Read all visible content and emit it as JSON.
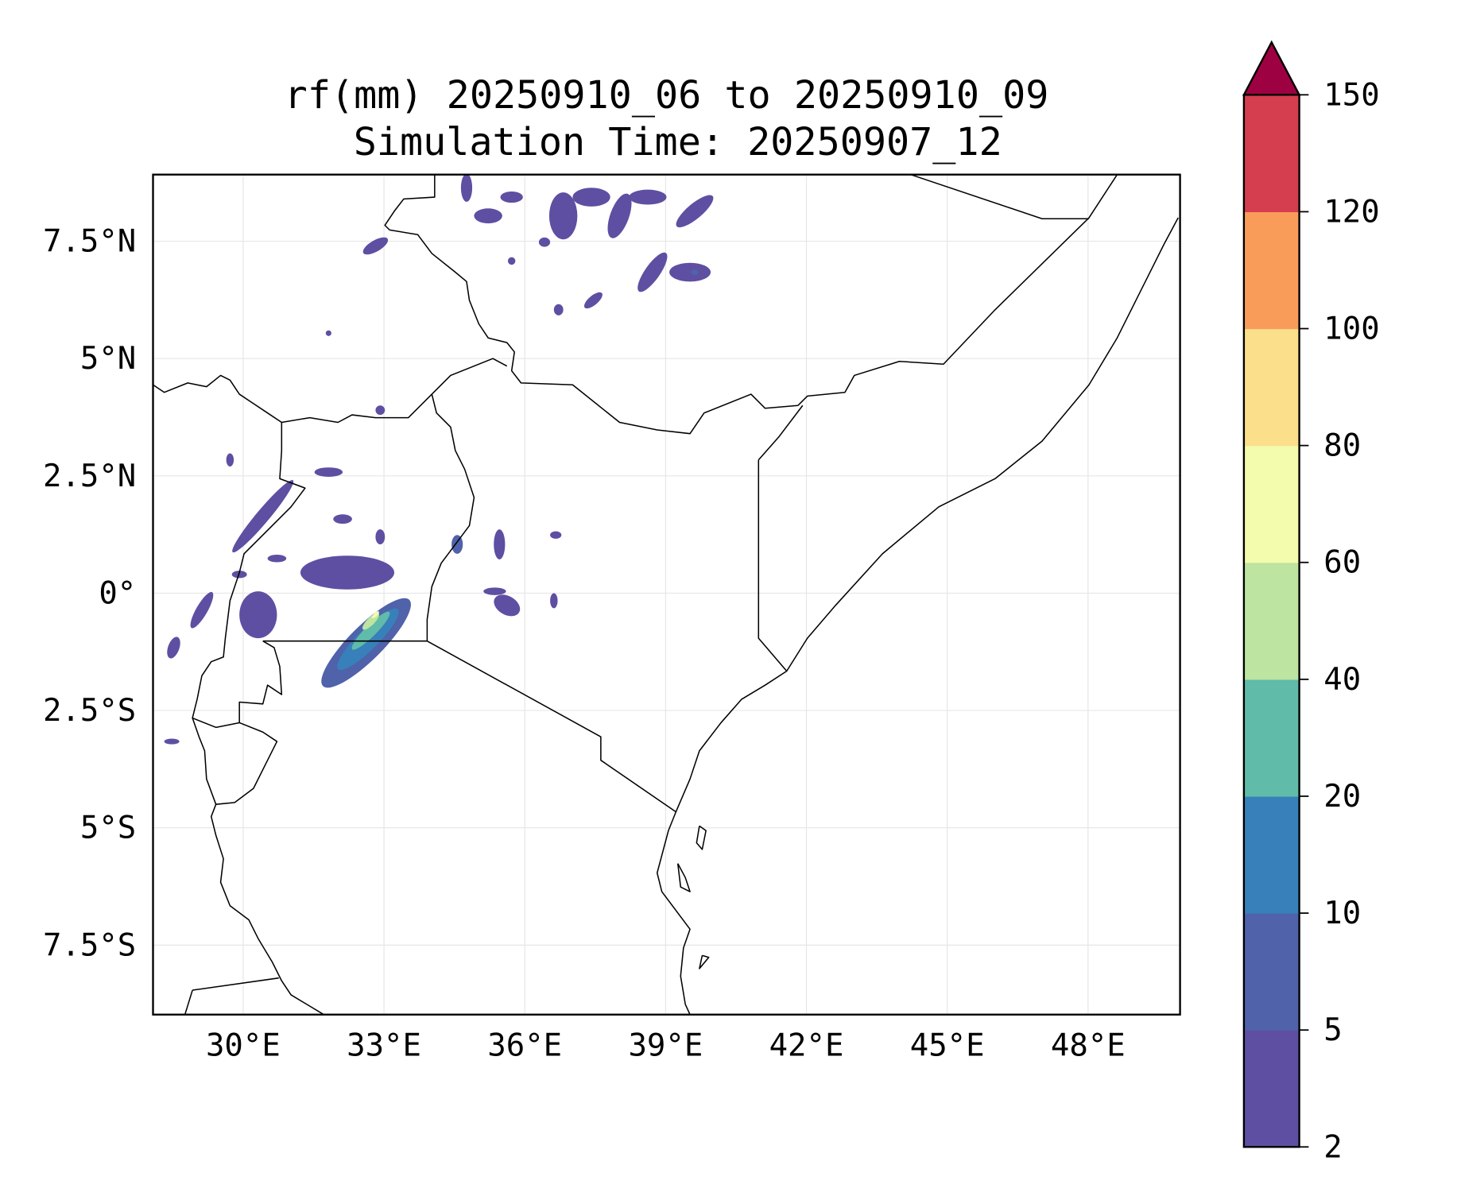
{
  "chart_data": {
    "type": "heatmap",
    "subtype": "filled-contour-map",
    "title": [
      "rf(mm) 20250910_06 to 20250910_09",
      "Simulation Time: 20250907_12"
    ],
    "xlabel": "",
    "ylabel": "",
    "xlim": [
      28.08,
      49.96
    ],
    "ylim": [
      -8.98,
      8.92
    ],
    "grid": true,
    "x_ticks": [
      {
        "value": 30,
        "label": "30°E"
      },
      {
        "value": 33,
        "label": "33°E"
      },
      {
        "value": 36,
        "label": "36°E"
      },
      {
        "value": 39,
        "label": "39°E"
      },
      {
        "value": 42,
        "label": "42°E"
      },
      {
        "value": 45,
        "label": "45°E"
      },
      {
        "value": 48,
        "label": "48°E"
      }
    ],
    "y_ticks": [
      {
        "value": 7.5,
        "label": "7.5°N"
      },
      {
        "value": 5,
        "label": "5°N"
      },
      {
        "value": 2.5,
        "label": "2.5°N"
      },
      {
        "value": 0,
        "label": "0°"
      },
      {
        "value": -2.5,
        "label": "2.5°S"
      },
      {
        "value": -5,
        "label": "5°S"
      },
      {
        "value": -7.5,
        "label": "7.5°S"
      }
    ],
    "colorbar": {
      "placement": "right",
      "levels": [
        2,
        5,
        10,
        20,
        40,
        60,
        80,
        100,
        120,
        150
      ],
      "labels": [
        "2",
        "5",
        "10",
        "20",
        "40",
        "60",
        "80",
        "100",
        "120",
        "150"
      ],
      "colors": [
        "#5e4fa2",
        "#4f62aa",
        "#3880b9",
        "#61bba9",
        "#bde4a0",
        "#f3fbad",
        "#fbdf8a",
        "#f99c5a",
        "#d53e4f"
      ],
      "extend_max_color": "#9e0142"
    },
    "rain_cells": [
      {
        "lon": 32.22,
        "lat": 0.44,
        "rlon": 1.0,
        "rlat": 0.36,
        "rot": 0,
        "level": 0
      },
      {
        "lon": 32.62,
        "lat": -1.06,
        "rlon": 1.3,
        "rlat": 0.36,
        "rot": -45,
        "level": 1
      },
      {
        "lon": 32.66,
        "lat": -0.98,
        "rlon": 0.9,
        "rlat": 0.22,
        "rot": -45,
        "level": 2
      },
      {
        "lon": 32.72,
        "lat": -0.8,
        "rlon": 0.56,
        "rlat": 0.12,
        "rot": -45,
        "level": 3
      },
      {
        "lon": 32.72,
        "lat": -0.6,
        "rlon": 0.24,
        "rlat": 0.08,
        "rot": -45,
        "level": 4
      },
      {
        "lon": 32.82,
        "lat": -0.46,
        "rlon": 0.1,
        "rlat": 0.04,
        "rot": -45,
        "level": 5
      },
      {
        "lon": 30.32,
        "lat": -0.46,
        "rlon": 0.4,
        "rlat": 0.5,
        "rot": 0,
        "level": 0
      },
      {
        "lon": 30.42,
        "lat": 1.64,
        "rlon": 1.0,
        "rlat": 0.14,
        "rot": -50,
        "level": 0
      },
      {
        "lon": 29.12,
        "lat": -0.36,
        "rlon": 0.44,
        "rlat": 0.12,
        "rot": -60,
        "level": 0
      },
      {
        "lon": 31.82,
        "lat": 2.58,
        "rlon": 0.3,
        "rlat": 0.1,
        "rot": 0,
        "level": 0
      },
      {
        "lon": 32.12,
        "lat": 1.58,
        "rlon": 0.2,
        "rlat": 0.1,
        "rot": 0,
        "level": 0
      },
      {
        "lon": 32.92,
        "lat": 1.2,
        "rlon": 0.1,
        "rlat": 0.16,
        "rot": 0,
        "level": 0
      },
      {
        "lon": 34.56,
        "lat": 1.04,
        "rlon": 0.12,
        "rlat": 0.2,
        "rot": 0,
        "level": 1
      },
      {
        "lon": 35.46,
        "lat": 1.04,
        "rlon": 0.12,
        "rlat": 0.32,
        "rot": 0,
        "level": 0
      },
      {
        "lon": 35.62,
        "lat": -0.26,
        "rlon": 0.3,
        "rlat": 0.2,
        "rot": 30,
        "level": 0
      },
      {
        "lon": 36.66,
        "lat": 1.24,
        "rlon": 0.12,
        "rlat": 0.08,
        "rot": 0,
        "level": 0
      },
      {
        "lon": 32.92,
        "lat": 3.9,
        "rlon": 0.1,
        "rlat": 0.1,
        "rot": 0,
        "level": 0
      },
      {
        "lon": 29.72,
        "lat": 2.84,
        "rlon": 0.08,
        "rlat": 0.14,
        "rot": 0,
        "level": 0
      },
      {
        "lon": 28.52,
        "lat": -1.16,
        "rlon": 0.12,
        "rlat": 0.24,
        "rot": 20,
        "level": 0
      },
      {
        "lon": 28.48,
        "lat": -3.16,
        "rlon": 0.16,
        "rlat": 0.06,
        "rot": 0,
        "level": 0
      },
      {
        "lon": 30.72,
        "lat": 0.74,
        "rlon": 0.2,
        "rlat": 0.08,
        "rot": 0,
        "level": 0
      },
      {
        "lon": 29.92,
        "lat": 0.4,
        "rlon": 0.16,
        "rlat": 0.08,
        "rot": 0,
        "level": 0
      },
      {
        "lon": 32.82,
        "lat": 7.4,
        "rlon": 0.3,
        "rlat": 0.12,
        "rot": -30,
        "level": 0
      },
      {
        "lon": 35.22,
        "lat": 8.04,
        "rlon": 0.3,
        "rlat": 0.16,
        "rot": 0,
        "level": 0
      },
      {
        "lon": 35.72,
        "lat": 8.44,
        "rlon": 0.24,
        "rlat": 0.12,
        "rot": 0,
        "level": 0
      },
      {
        "lon": 36.82,
        "lat": 8.04,
        "rlon": 0.3,
        "rlat": 0.5,
        "rot": 0,
        "level": 0
      },
      {
        "lon": 37.42,
        "lat": 8.44,
        "rlon": 0.4,
        "rlat": 0.2,
        "rot": 0,
        "level": 0
      },
      {
        "lon": 38.02,
        "lat": 8.04,
        "rlon": 0.2,
        "rlat": 0.5,
        "rot": 20,
        "level": 0
      },
      {
        "lon": 38.62,
        "lat": 8.44,
        "rlon": 0.4,
        "rlat": 0.16,
        "rot": 0,
        "level": 0
      },
      {
        "lon": 39.62,
        "lat": 8.14,
        "rlon": 0.5,
        "rlat": 0.16,
        "rot": -40,
        "level": 0
      },
      {
        "lon": 38.72,
        "lat": 6.84,
        "rlon": 0.5,
        "rlat": 0.16,
        "rot": -55,
        "level": 0
      },
      {
        "lon": 39.52,
        "lat": 6.84,
        "rlon": 0.44,
        "rlat": 0.2,
        "rot": 0,
        "level": 0
      },
      {
        "lon": 39.62,
        "lat": 6.84,
        "rlon": 0.08,
        "rlat": 0.06,
        "rot": 0,
        "level": 1
      },
      {
        "lon": 37.46,
        "lat": 6.24,
        "rlon": 0.24,
        "rlat": 0.1,
        "rot": -40,
        "level": 0
      },
      {
        "lon": 36.72,
        "lat": 6.04,
        "rlon": 0.1,
        "rlat": 0.12,
        "rot": 0,
        "level": 0
      },
      {
        "lon": 35.72,
        "lat": 7.08,
        "rlon": 0.08,
        "rlat": 0.08,
        "rot": 0,
        "level": 0
      },
      {
        "lon": 34.76,
        "lat": 8.64,
        "rlon": 0.12,
        "rlat": 0.3,
        "rot": 0,
        "level": 0
      },
      {
        "lon": 36.42,
        "lat": 7.48,
        "rlon": 0.12,
        "rlat": 0.1,
        "rot": 0,
        "level": 0
      },
      {
        "lon": 31.82,
        "lat": 5.54,
        "rlon": 0.06,
        "rlat": 0.06,
        "rot": 0,
        "level": 0
      },
      {
        "lon": 36.62,
        "lat": -0.16,
        "rlon": 0.08,
        "rlat": 0.16,
        "rot": 0,
        "level": 0
      },
      {
        "lon": 35.36,
        "lat": 0.04,
        "rlon": 0.24,
        "rlat": 0.08,
        "rot": 0,
        "level": 0
      }
    ]
  }
}
